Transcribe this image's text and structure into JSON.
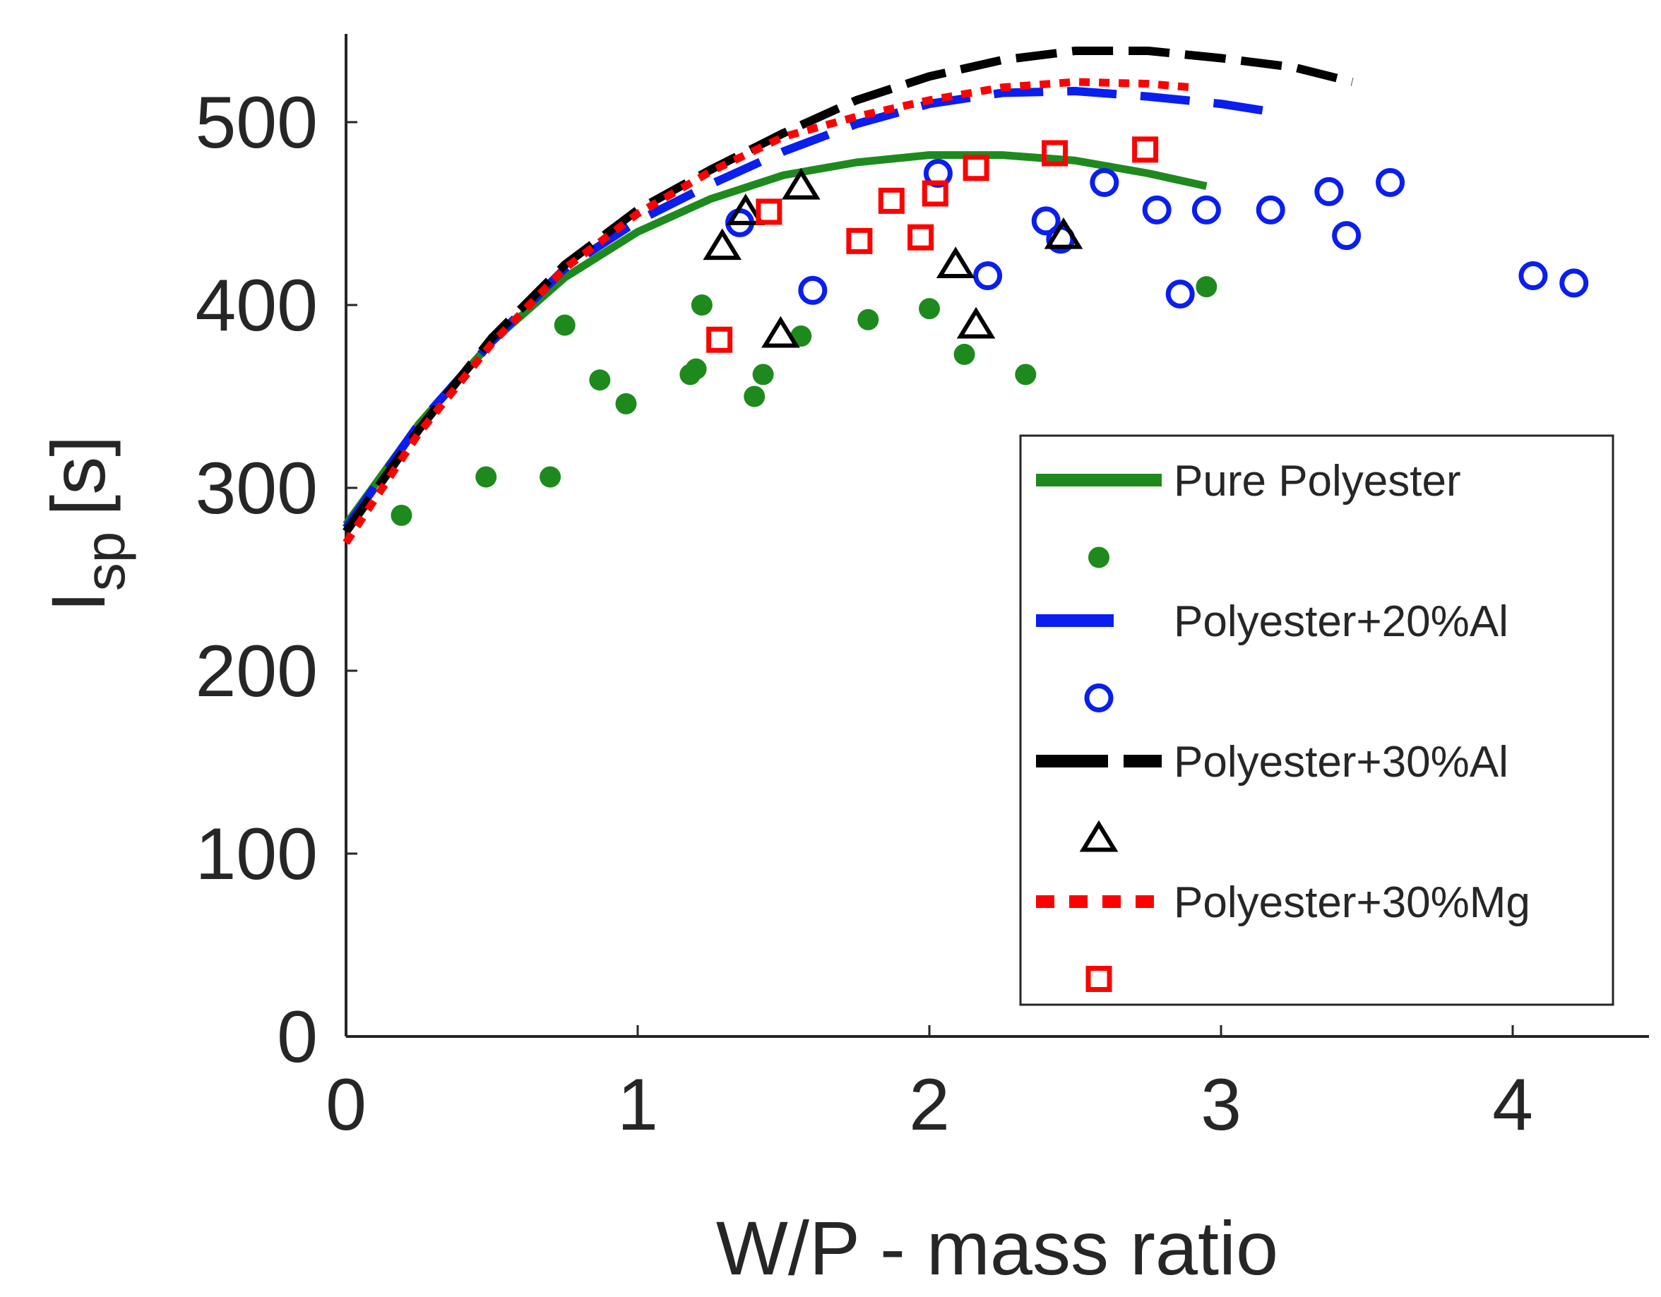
{
  "chart_data": {
    "type": "scatter",
    "title": "",
    "xlabel": "W/P - mass ratio",
    "ylabel": {
      "main": "I",
      "subscript": "sp",
      "unit": "[s]"
    },
    "xlim": [
      0,
      4.5
    ],
    "ylim": [
      0,
      550
    ],
    "xticks": [
      0,
      1,
      2,
      3,
      4
    ],
    "yticks": [
      0,
      100,
      200,
      300,
      400,
      500
    ],
    "grid": false,
    "legend_position": "lower-right",
    "series": [
      {
        "name": "Pure Polyester",
        "kind": "line",
        "style": "solid",
        "color": "#1e8a1e",
        "x": [
          0,
          0.25,
          0.5,
          0.75,
          1.0,
          1.25,
          1.5,
          1.75,
          2.0,
          2.25,
          2.5,
          2.75,
          2.95
        ],
        "y": [
          280,
          335,
          380,
          415,
          440,
          458,
          471,
          478,
          482,
          482,
          479,
          472,
          465
        ]
      },
      {
        "name": "",
        "kind": "scatter",
        "marker": "filled-circle",
        "color": "#1e8a1e",
        "x": [
          0.19,
          0.48,
          0.7,
          0.75,
          0.87,
          0.96,
          1.18,
          1.2,
          1.22,
          1.4,
          1.43,
          1.56,
          1.79,
          2.0,
          2.12,
          2.33,
          2.95
        ],
        "y": [
          285,
          306,
          306,
          389,
          359,
          346,
          362,
          365,
          400,
          350,
          362,
          383,
          392,
          398,
          373,
          362,
          410
        ]
      },
      {
        "name": "Polyester+20%Al",
        "kind": "line",
        "style": "dashed",
        "color": "#0a1ef0",
        "x": [
          0,
          0.25,
          0.5,
          0.75,
          1.0,
          1.25,
          1.5,
          1.75,
          2.0,
          2.25,
          2.5,
          2.75,
          3.0,
          3.2
        ],
        "y": [
          278,
          335,
          380,
          420,
          446,
          466,
          484,
          499,
          510,
          516,
          517,
          514,
          510,
          505
        ]
      },
      {
        "name": "",
        "kind": "scatter",
        "marker": "open-circle",
        "color": "#0a1ef0",
        "x": [
          1.35,
          1.6,
          2.03,
          2.2,
          2.4,
          2.45,
          2.6,
          2.78,
          2.86,
          2.95,
          3.17,
          3.37,
          3.43,
          3.58,
          4.07,
          4.21
        ],
        "y": [
          445,
          408,
          472,
          416,
          446,
          436,
          467,
          452,
          406,
          452,
          452,
          462,
          438,
          467,
          416,
          412
        ]
      },
      {
        "name": "Polyester+30%Al",
        "kind": "line",
        "style": "dashed",
        "color": "#000000",
        "x": [
          0,
          0.25,
          0.5,
          0.75,
          1.0,
          1.25,
          1.5,
          1.75,
          2.0,
          2.25,
          2.5,
          2.75,
          3.0,
          3.25,
          3.45
        ],
        "y": [
          276,
          332,
          382,
          422,
          452,
          474,
          494,
          512,
          525,
          534,
          539,
          539,
          535,
          530,
          522
        ]
      },
      {
        "name": "",
        "kind": "scatter",
        "marker": "open-triangle",
        "color": "#000000",
        "x": [
          1.29,
          1.37,
          1.49,
          1.56,
          2.09,
          2.16,
          2.46
        ],
        "y": [
          432,
          451,
          384,
          465,
          422,
          389,
          438
        ]
      },
      {
        "name": "Polyester+30%Mg",
        "kind": "line",
        "style": "dotted",
        "color": "#ff0000",
        "x": [
          0,
          0.25,
          0.5,
          0.75,
          1.0,
          1.25,
          1.5,
          1.75,
          2.0,
          2.25,
          2.5,
          2.75,
          2.9
        ],
        "y": [
          270,
          330,
          379,
          420,
          450,
          473,
          492,
          503,
          512,
          519,
          522,
          521,
          519
        ]
      },
      {
        "name": "",
        "kind": "scatter",
        "marker": "open-square",
        "color": "#ff0000",
        "x": [
          1.28,
          1.45,
          1.76,
          1.87,
          1.97,
          2.02,
          2.16,
          2.43,
          2.74
        ],
        "y": [
          381,
          451,
          435,
          457,
          437,
          461,
          475,
          483,
          485
        ]
      }
    ]
  }
}
